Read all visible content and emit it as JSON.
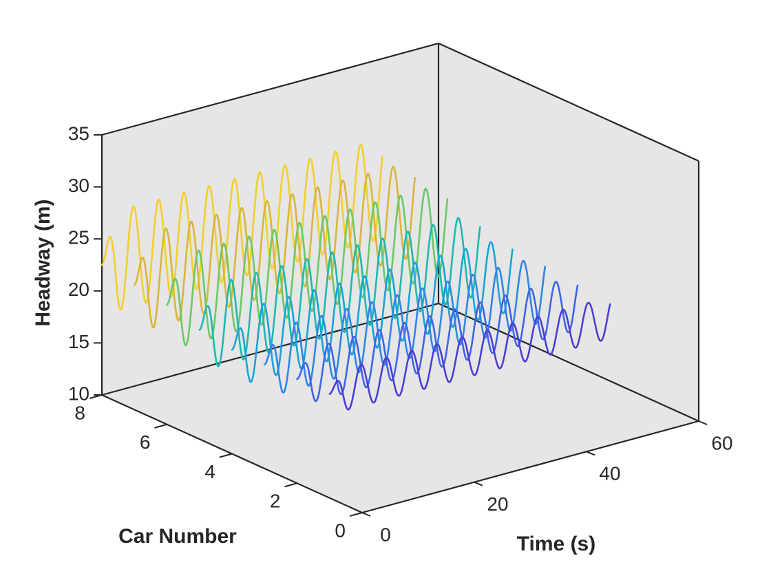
{
  "chart_data": {
    "type": "line",
    "projection": "3d",
    "title": "",
    "xlabel": "Time (s)",
    "ylabel": "Car Number",
    "zlabel": "Headway (m)",
    "xlim": [
      0,
      60
    ],
    "ylim": [
      0,
      8
    ],
    "zlim": [
      10,
      35
    ],
    "x_ticks": [
      "0",
      "20",
      "40",
      "60"
    ],
    "y_ticks": [
      "0",
      "2",
      "4",
      "6",
      "8"
    ],
    "z_ticks": [
      "10",
      "15",
      "20",
      "25",
      "30",
      "35"
    ],
    "grid": false,
    "series": [
      {
        "car": 1,
        "color": "#4a3ed4",
        "t_start": 0,
        "t_end": 50,
        "base": 20.0,
        "amplitude": 2.0,
        "period": 4.5
      },
      {
        "car": 2,
        "color": "#3f62e8",
        "t_start": 0,
        "t_end": 50,
        "base": 20.0,
        "amplitude": 2.6,
        "period": 4.5
      },
      {
        "car": 3,
        "color": "#2f84e8",
        "t_start": 0,
        "t_end": 50,
        "base": 20.0,
        "amplitude": 3.2,
        "period": 4.5
      },
      {
        "car": 4,
        "color": "#18a2d8",
        "t_start": 0,
        "t_end": 50,
        "base": 20.0,
        "amplitude": 3.6,
        "period": 4.5
      },
      {
        "car": 5,
        "color": "#1db8b0",
        "t_start": 0,
        "t_end": 50,
        "base": 20.5,
        "amplitude": 4.0,
        "period": 4.5
      },
      {
        "car": 6,
        "color": "#6cc766",
        "t_start": 0,
        "t_end": 50,
        "base": 21.5,
        "amplitude": 4.4,
        "period": 4.5
      },
      {
        "car": 7,
        "color": "#d9b53a",
        "t_start": 0,
        "t_end": 50,
        "base": 22.0,
        "amplitude": 4.6,
        "period": 4.5
      },
      {
        "car": 8,
        "color": "#f2cf2d",
        "t_start": 0,
        "t_end": 50,
        "base": 22.5,
        "amplitude": 4.8,
        "period": 4.5
      }
    ]
  }
}
